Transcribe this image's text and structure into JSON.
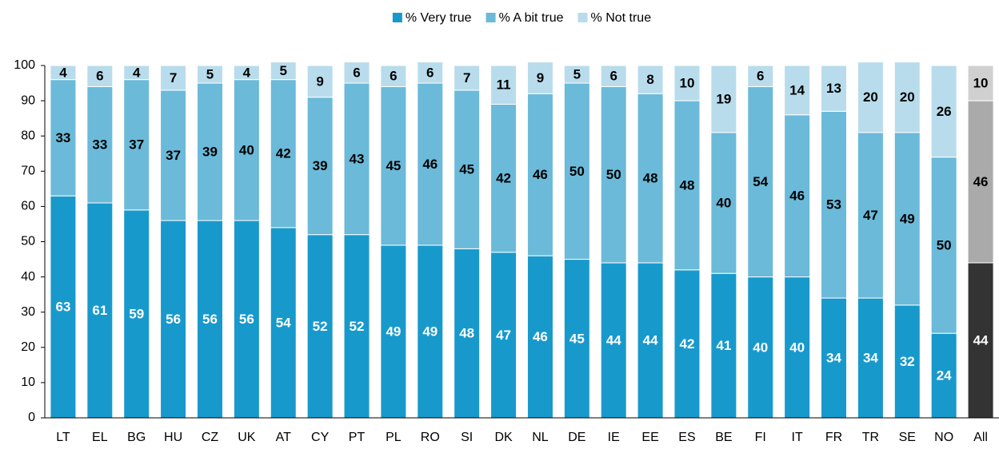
{
  "chart_data": {
    "type": "stacked_bar",
    "categories": [
      "LT",
      "EL",
      "BG",
      "HU",
      "CZ",
      "UK",
      "AT",
      "CY",
      "PT",
      "PL",
      "RO",
      "SI",
      "DK",
      "NL",
      "DE",
      "IE",
      "EE",
      "ES",
      "BE",
      "FI",
      "IT",
      "FR",
      "TR",
      "SE",
      "NO",
      "All"
    ],
    "series": [
      {
        "name": "% Very true",
        "color": "#1899cc",
        "label_color": "#ffffff",
        "colors": [
          "#1899cc",
          "#1899cc",
          "#1899cc",
          "#1899cc",
          "#1899cc",
          "#1899cc",
          "#1899cc",
          "#1899cc",
          "#1899cc",
          "#1899cc",
          "#1899cc",
          "#1899cc",
          "#1899cc",
          "#1899cc",
          "#1899cc",
          "#1899cc",
          "#1899cc",
          "#1899cc",
          "#1899cc",
          "#1899cc",
          "#1899cc",
          "#1899cc",
          "#1899cc",
          "#1899cc",
          "#1899cc",
          "#333333"
        ],
        "values": [
          63,
          61,
          59,
          56,
          56,
          56,
          54,
          52,
          52,
          49,
          49,
          48,
          47,
          46,
          45,
          44,
          44,
          42,
          41,
          40,
          40,
          34,
          34,
          32,
          24,
          44
        ]
      },
      {
        "name": "% A bit true",
        "color": "#6bbad9",
        "label_color": "#000000",
        "colors": [
          "#6bbad9",
          "#6bbad9",
          "#6bbad9",
          "#6bbad9",
          "#6bbad9",
          "#6bbad9",
          "#6bbad9",
          "#6bbad9",
          "#6bbad9",
          "#6bbad9",
          "#6bbad9",
          "#6bbad9",
          "#6bbad9",
          "#6bbad9",
          "#6bbad9",
          "#6bbad9",
          "#6bbad9",
          "#6bbad9",
          "#6bbad9",
          "#6bbad9",
          "#6bbad9",
          "#6bbad9",
          "#6bbad9",
          "#6bbad9",
          "#6bbad9",
          "#aaaaaa"
        ],
        "values": [
          33,
          33,
          37,
          37,
          39,
          40,
          42,
          39,
          43,
          45,
          46,
          45,
          42,
          46,
          50,
          50,
          48,
          48,
          40,
          54,
          46,
          53,
          47,
          49,
          50,
          46
        ]
      },
      {
        "name": "% Not true",
        "color": "#b8dcec",
        "label_color": "#000000",
        "colors": [
          "#b8dcec",
          "#b8dcec",
          "#b8dcec",
          "#b8dcec",
          "#b8dcec",
          "#b8dcec",
          "#b8dcec",
          "#b8dcec",
          "#b8dcec",
          "#b8dcec",
          "#b8dcec",
          "#b8dcec",
          "#b8dcec",
          "#b8dcec",
          "#b8dcec",
          "#b8dcec",
          "#b8dcec",
          "#b8dcec",
          "#b8dcec",
          "#b8dcec",
          "#b8dcec",
          "#b8dcec",
          "#b8dcec",
          "#b8dcec",
          "#b8dcec",
          "#d0d0d0"
        ],
        "values": [
          4,
          6,
          4,
          7,
          5,
          4,
          5,
          9,
          6,
          6,
          6,
          7,
          11,
          9,
          5,
          6,
          8,
          10,
          19,
          6,
          14,
          13,
          20,
          20,
          26,
          10
        ]
      }
    ],
    "ylim": [
      0,
      100
    ],
    "yticks": [
      0,
      10,
      20,
      30,
      40,
      50,
      60,
      70,
      80,
      90,
      100
    ],
    "legend": "top"
  }
}
